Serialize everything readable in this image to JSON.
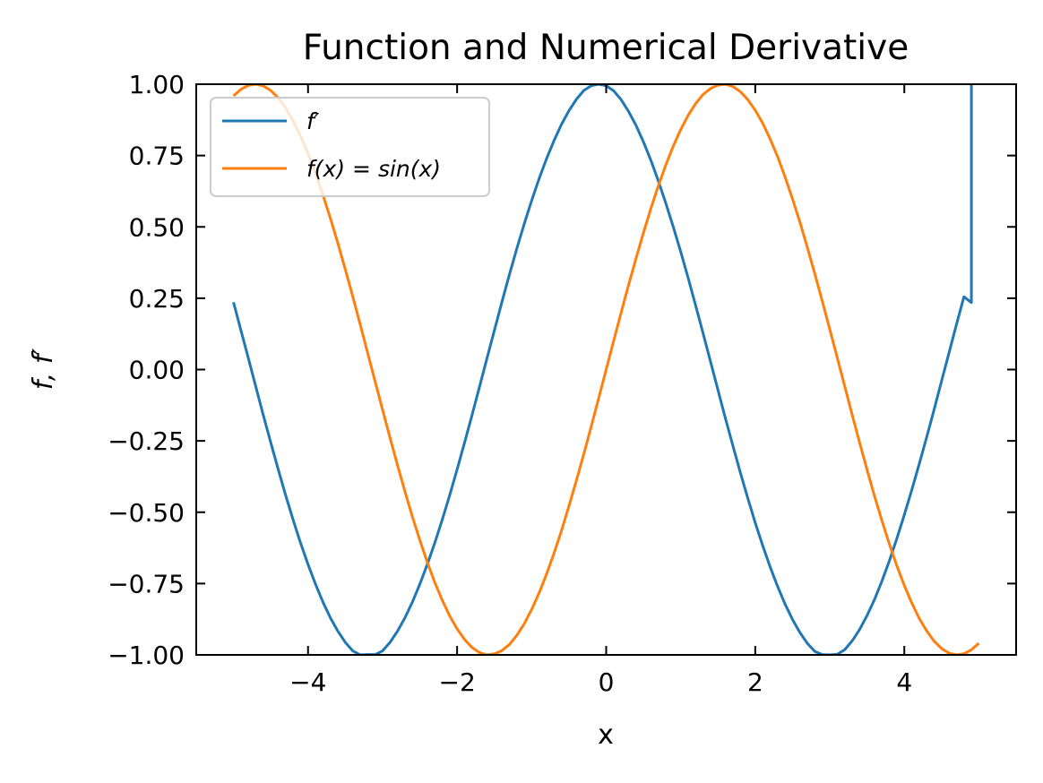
{
  "chart_data": {
    "type": "line",
    "title": "Function and Numerical Derivative",
    "xlabel": "x",
    "ylabel": "f, f′",
    "xlim": [
      -5.5,
      5.5
    ],
    "ylim": [
      -1.0,
      1.0
    ],
    "xticks": [
      -4,
      -2,
      0,
      2,
      4
    ],
    "xtick_labels": [
      "−4",
      "−2",
      "0",
      "2",
      "4"
    ],
    "yticks": [
      -1.0,
      -0.75,
      -0.5,
      -0.25,
      0.0,
      0.25,
      0.5,
      0.75,
      1.0
    ],
    "ytick_labels": [
      "−1.00",
      "−0.75",
      "−0.50",
      "−0.25",
      "0.00",
      "0.25",
      "0.50",
      "0.75",
      "1.00"
    ],
    "grid": false,
    "legend_position": "top-left",
    "series": [
      {
        "name": "f′",
        "color": "#1f77b4",
        "x": [
          -5.0,
          -4.9,
          -4.8,
          -4.7,
          -4.6,
          -4.5,
          -4.4,
          -4.3,
          -4.2,
          -4.1,
          -4.0,
          -3.9,
          -3.8,
          -3.7,
          -3.6,
          -3.5,
          -3.4,
          -3.3,
          -3.2,
          -3.1,
          -3.0,
          -2.9,
          -2.8,
          -2.7,
          -2.6,
          -2.5,
          -2.4,
          -2.3,
          -2.2,
          -2.1,
          -2.0,
          -1.9,
          -1.8,
          -1.7,
          -1.6,
          -1.5,
          -1.4,
          -1.3,
          -1.2,
          -1.1,
          -1.0,
          -0.9,
          -0.8,
          -0.7,
          -0.6,
          -0.5,
          -0.4,
          -0.3,
          -0.2,
          -0.1,
          0.0,
          0.1,
          0.2,
          0.3,
          0.4,
          0.5,
          0.6,
          0.7,
          0.8,
          0.9,
          1.0,
          1.1,
          1.2,
          1.3,
          1.4,
          1.5,
          1.6,
          1.7,
          1.8,
          1.9,
          2.0,
          2.1,
          2.2,
          2.3,
          2.4,
          2.5,
          2.6,
          2.7,
          2.8,
          2.9,
          3.0,
          3.1,
          3.2,
          3.3,
          3.4,
          3.5,
          3.6,
          3.7,
          3.8,
          3.9,
          4.0,
          4.1,
          4.2,
          4.3,
          4.4,
          4.5,
          4.6,
          4.7,
          4.8,
          4.9,
          4.9
        ],
        "y": [
          0.236,
          0.137,
          0.039,
          -0.061,
          -0.16,
          -0.256,
          -0.35,
          -0.441,
          -0.527,
          -0.608,
          -0.683,
          -0.752,
          -0.815,
          -0.87,
          -0.917,
          -0.956,
          -0.986,
          -1.0,
          -0.999,
          -0.999,
          -0.986,
          -0.956,
          -0.917,
          -0.87,
          -0.815,
          -0.752,
          -0.683,
          -0.608,
          -0.527,
          -0.441,
          -0.35,
          -0.256,
          -0.16,
          -0.061,
          0.039,
          0.137,
          0.236,
          0.331,
          0.423,
          0.51,
          0.592,
          0.669,
          0.739,
          0.802,
          0.859,
          0.907,
          0.947,
          0.978,
          0.995,
          1.0,
          0.995,
          0.977,
          0.946,
          0.905,
          0.856,
          0.798,
          0.733,
          0.661,
          0.583,
          0.5,
          0.413,
          0.321,
          0.225,
          0.127,
          0.028,
          -0.072,
          -0.171,
          -0.267,
          -0.361,
          -0.451,
          -0.537,
          -0.617,
          -0.692,
          -0.76,
          -0.822,
          -0.876,
          -0.922,
          -0.96,
          -0.988,
          -0.999,
          -1.0,
          -0.998,
          -0.982,
          -0.951,
          -0.911,
          -0.862,
          -0.806,
          -0.741,
          -0.67,
          -0.592,
          -0.509,
          -0.422,
          -0.331,
          -0.237,
          -0.14,
          -0.04,
          0.059,
          0.158,
          0.255,
          0.235,
          1.0
        ]
      },
      {
        "name": "f(x) = sin(x)",
        "color": "#ff7f0e",
        "x": [
          -5.0,
          -4.9,
          -4.8,
          -4.7,
          -4.6,
          -4.5,
          -4.4,
          -4.3,
          -4.2,
          -4.1,
          -4.0,
          -3.9,
          -3.8,
          -3.7,
          -3.6,
          -3.5,
          -3.4,
          -3.3,
          -3.2,
          -3.1,
          -3.0,
          -2.9,
          -2.8,
          -2.7,
          -2.6,
          -2.5,
          -2.4,
          -2.3,
          -2.2,
          -2.1,
          -2.0,
          -1.9,
          -1.8,
          -1.7,
          -1.6,
          -1.5,
          -1.4,
          -1.3,
          -1.2,
          -1.1,
          -1.0,
          -0.9,
          -0.8,
          -0.7,
          -0.6,
          -0.5,
          -0.4,
          -0.3,
          -0.2,
          -0.1,
          0.0,
          0.1,
          0.2,
          0.3,
          0.4,
          0.5,
          0.6,
          0.7,
          0.8,
          0.9,
          1.0,
          1.1,
          1.2,
          1.3,
          1.4,
          1.5,
          1.6,
          1.7,
          1.8,
          1.9,
          2.0,
          2.1,
          2.2,
          2.3,
          2.4,
          2.5,
          2.6,
          2.7,
          2.8,
          2.9,
          3.0,
          3.1,
          3.2,
          3.3,
          3.4,
          3.5,
          3.6,
          3.7,
          3.8,
          3.9,
          4.0,
          4.1,
          4.2,
          4.3,
          4.4,
          4.5,
          4.6,
          4.7,
          4.8,
          4.9,
          5.0
        ],
        "y": [
          0.959,
          0.982,
          0.996,
          1.0,
          0.994,
          0.978,
          0.952,
          0.916,
          0.872,
          0.818,
          0.757,
          0.688,
          0.612,
          0.53,
          0.443,
          0.351,
          0.256,
          0.158,
          0.058,
          -0.042,
          -0.141,
          -0.239,
          -0.335,
          -0.427,
          -0.516,
          -0.598,
          -0.675,
          -0.746,
          -0.808,
          -0.863,
          -0.909,
          -0.946,
          -0.974,
          -0.992,
          -1.0,
          -0.997,
          -0.985,
          -0.964,
          -0.932,
          -0.891,
          -0.841,
          -0.783,
          -0.717,
          -0.644,
          -0.565,
          -0.479,
          -0.389,
          -0.296,
          -0.199,
          -0.1,
          0.0,
          0.1,
          0.199,
          0.296,
          0.389,
          0.479,
          0.565,
          0.644,
          0.717,
          0.783,
          0.841,
          0.891,
          0.932,
          0.964,
          0.985,
          0.997,
          1.0,
          0.992,
          0.974,
          0.946,
          0.909,
          0.863,
          0.808,
          0.746,
          0.675,
          0.598,
          0.516,
          0.427,
          0.335,
          0.239,
          0.141,
          0.042,
          -0.058,
          -0.158,
          -0.256,
          -0.351,
          -0.443,
          -0.53,
          -0.612,
          -0.688,
          -0.757,
          -0.818,
          -0.872,
          -0.916,
          -0.952,
          -0.978,
          -0.994,
          -1.0,
          -0.996,
          -0.982,
          -0.959
        ]
      }
    ]
  }
}
